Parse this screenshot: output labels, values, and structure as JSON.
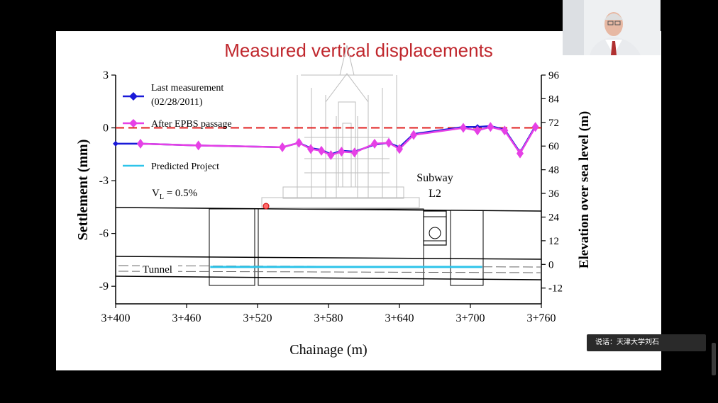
{
  "slide": {
    "title": "Measured vertical displacements"
  },
  "caption": {
    "text": "说话：天津大学刘石"
  },
  "labels": {
    "subway_line1": "Subway",
    "subway_line2": "L2",
    "tunnel": "Tunnel",
    "vl_main": "V",
    "vl_sub": "L",
    "vl_value": " = 0.5%"
  },
  "legend": [
    {
      "name": "Last measurement",
      "extra": "(02/28/2011)",
      "color": "#1a1ad8"
    },
    {
      "name": "After EPBS passage",
      "extra": "",
      "color": "#e640e6"
    },
    {
      "name": "Predicted Project",
      "extra": "",
      "color": "#2ec4ea"
    }
  ],
  "chart_data": {
    "type": "line",
    "title": "Measured vertical displacements",
    "xlabel": "Chainage (m)",
    "ylabel": "Settlement (mm)",
    "y2label": "Elevation over sea level (m)",
    "xlim": [
      3400,
      3760
    ],
    "ylim": [
      -10,
      3
    ],
    "y2lim": [
      -20,
      96
    ],
    "xticks": [
      "3+400",
      "3+460",
      "3+520",
      "3+580",
      "3+640",
      "3+700",
      "3+760"
    ],
    "xtick_values": [
      3400,
      3460,
      3520,
      3580,
      3640,
      3700,
      3760
    ],
    "yticks": [
      "3",
      "0",
      "-3",
      "-6",
      "-9"
    ],
    "ytick_values": [
      3,
      0,
      -3,
      -6,
      -9
    ],
    "y2ticks": [
      "96",
      "84",
      "72",
      "60",
      "48",
      "36",
      "24",
      "12",
      "0",
      "-12"
    ],
    "y2tick_values": [
      96,
      84,
      72,
      60,
      48,
      36,
      24,
      12,
      0,
      -12
    ],
    "series": [
      {
        "name": "Last measurement",
        "color": "#1a1ad8",
        "x": [
          3400,
          3421,
          3470,
          3541,
          3555,
          3565,
          3574,
          3582,
          3591,
          3602,
          3619,
          3631,
          3640,
          3652,
          3694,
          3706,
          3717,
          3729,
          3742,
          3755
        ],
        "y": [
          -0.9,
          -0.9,
          -1.0,
          -1.1,
          -0.85,
          -1.15,
          -1.25,
          -1.5,
          -1.3,
          -1.35,
          -0.95,
          -0.85,
          -1.1,
          -0.35,
          0.05,
          0.05,
          0.1,
          -0.1,
          -1.4,
          0.1
        ]
      },
      {
        "name": "After EPBS passage",
        "color": "#e640e6",
        "x": [
          3421,
          3470,
          3541,
          3555,
          3565,
          3574,
          3582,
          3591,
          3602,
          3619,
          3631,
          3640,
          3652,
          3694,
          3706,
          3717,
          3729,
          3742,
          3755
        ],
        "y": [
          -0.9,
          -1.0,
          -1.1,
          -0.85,
          -1.2,
          -1.3,
          -1.55,
          -1.35,
          -1.4,
          -0.9,
          -0.85,
          -1.2,
          -0.4,
          0.0,
          -0.15,
          0.05,
          -0.15,
          -1.45,
          0.05
        ]
      },
      {
        "name": "Predicted Project",
        "color": "#2ec4ea",
        "x": [
          3480,
          3710
        ],
        "y": [
          -7.9,
          -7.9
        ]
      }
    ],
    "reference_line": {
      "y": 0,
      "style": "dashed",
      "color": "#e02020"
    }
  }
}
